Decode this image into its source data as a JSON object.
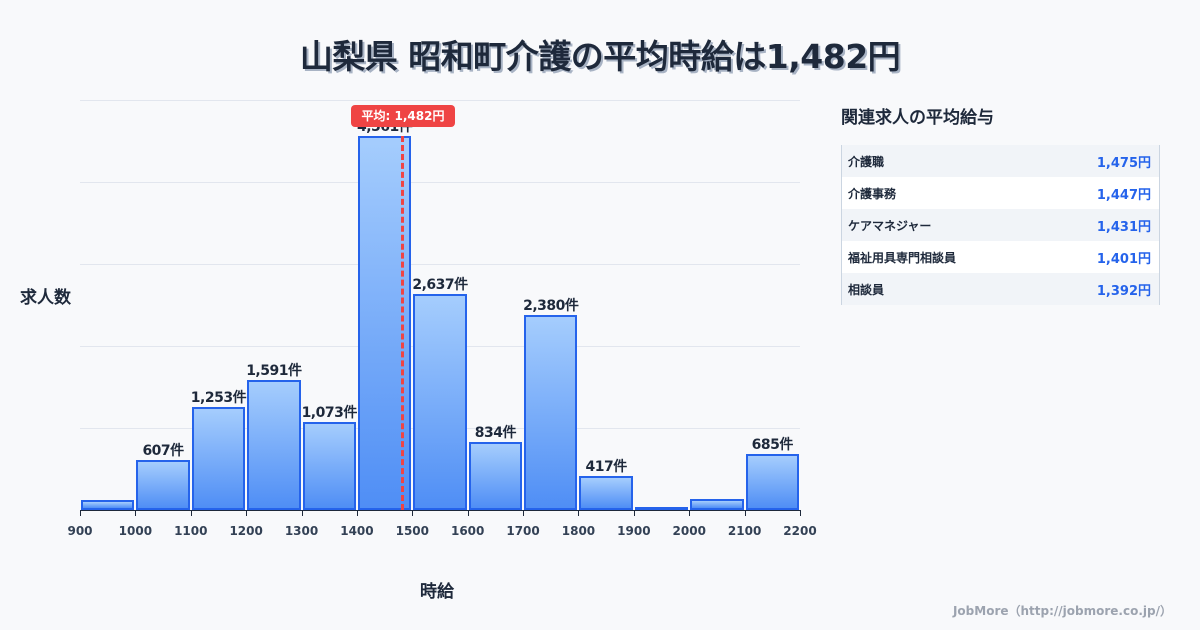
{
  "title": "山梨県 昭和町介護の平均時給は1,482円",
  "chart_data": {
    "type": "bar",
    "title": "山梨県 昭和町介護の平均時給は1,482円",
    "xlabel": "時給",
    "ylabel": "求人数",
    "bin_edges": [
      900,
      1000,
      1100,
      1200,
      1300,
      1400,
      1500,
      1600,
      1700,
      1800,
      1900,
      2000,
      2100,
      2200
    ],
    "categories": [
      "900-1000",
      "1000-1100",
      "1100-1200",
      "1200-1300",
      "1300-1400",
      "1400-1500",
      "1500-1600",
      "1600-1700",
      "1700-1800",
      "1800-1900",
      "1900-2000",
      "2000-2100",
      "2100-2200"
    ],
    "values": [
      120,
      607,
      1253,
      1591,
      1073,
      4561,
      2637,
      834,
      2380,
      417,
      10,
      130,
      685
    ],
    "labels": [
      "",
      "607件",
      "1,253件",
      "1,591件",
      "1,073件",
      "4,561件",
      "2,637件",
      "834件",
      "2,380件",
      "417件",
      "",
      "",
      "685件"
    ],
    "ylim": [
      0,
      5000
    ],
    "grid": true,
    "mean": 1482,
    "mean_label": "平均: 1,482円"
  },
  "x_ticks": [
    "900",
    "1000",
    "1100",
    "1200",
    "1300",
    "1400",
    "1500",
    "1600",
    "1700",
    "1800",
    "1900",
    "2000",
    "2100",
    "2200"
  ],
  "side_panel": {
    "title": "関連求人の平均給与",
    "rows": [
      {
        "name": "介護職",
        "value": "1,475円"
      },
      {
        "name": "介護事務",
        "value": "1,447円"
      },
      {
        "name": "ケアマネジャー",
        "value": "1,431円"
      },
      {
        "name": "福祉用具専門相談員",
        "value": "1,401円"
      },
      {
        "name": "相談員",
        "value": "1,392円"
      }
    ]
  },
  "footer": "JobMore（http://jobmore.co.jp/）",
  "colors": {
    "bar": "#4f8ef5",
    "bar_border": "#2563eb",
    "mean": "#ef4444",
    "value": "#2563eb"
  }
}
